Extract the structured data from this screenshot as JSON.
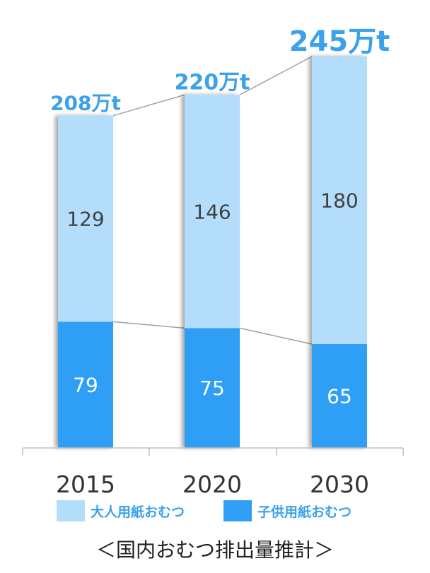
{
  "colors": {
    "adult": "#b3ddfa",
    "child": "#2f9ff5",
    "total_label": "#3aa1ea",
    "connector": "#a0a0a0",
    "axis": "#bfbfbf"
  },
  "chart_data": {
    "type": "bar",
    "stacked": true,
    "categories": [
      "2015",
      "2020",
      "2030"
    ],
    "series": [
      {
        "name": "子供用紙おむつ",
        "values": [
          79,
          75,
          65
        ],
        "color": "#2f9ff5"
      },
      {
        "name": "大人用紙おむつ",
        "values": [
          129,
          146,
          180
        ],
        "color": "#b3ddfa"
      }
    ],
    "totals": [
      "208万t",
      "220万t",
      "245万t"
    ],
    "ylim": [
      0,
      250
    ],
    "connector_lines": true,
    "legend_position": "bottom",
    "grid": false
  },
  "legend": {
    "adult_label": "大人用紙おむつ",
    "child_label": "子供用紙おむつ"
  },
  "caption": "＜国内おむつ排出量推計＞"
}
